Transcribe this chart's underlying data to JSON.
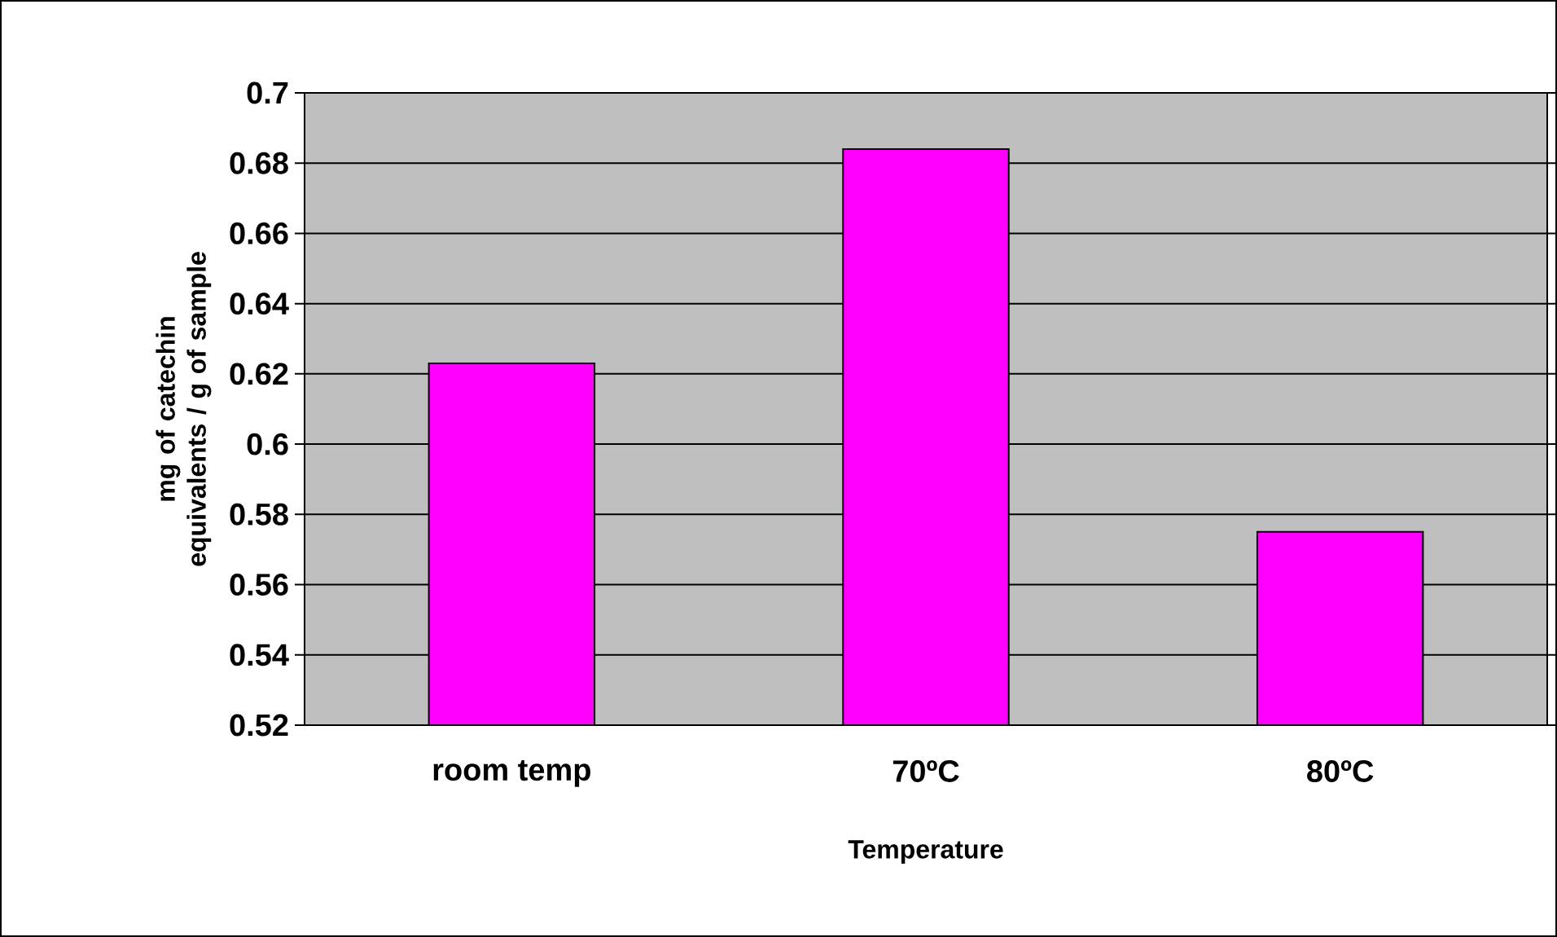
{
  "chart_data": {
    "type": "bar",
    "xlabel": "Temperature",
    "ylabel": "mg of catechin equivalents / g of sample",
    "categories": [
      "room temp",
      "70ºC",
      "80ºC"
    ],
    "values": [
      0.623,
      0.684,
      0.575
    ],
    "color": "#ff00ff",
    "ylim": [
      0.52,
      0.7
    ],
    "yticks": [
      0.52,
      0.54,
      0.56,
      0.58,
      0.6,
      0.62,
      0.64,
      0.66,
      0.68,
      0.7
    ],
    "grid": "y"
  }
}
